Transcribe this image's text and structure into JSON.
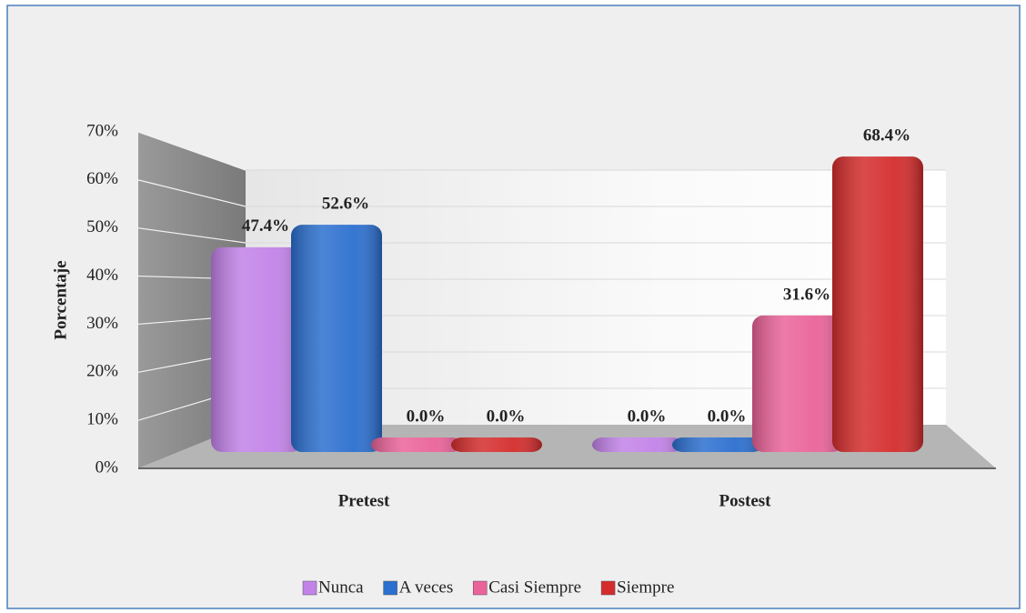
{
  "chart_data": {
    "type": "bar",
    "y_label": "Porcentaje",
    "categories": [
      "Pretest",
      "Postest"
    ],
    "series": [
      {
        "name": "Nunca",
        "color": "#c282e8",
        "values": [
          47.4,
          0
        ],
        "value_labels": [
          "47.4%",
          "0.0%"
        ]
      },
      {
        "name": "A veces",
        "color": "#2b6fcf",
        "values": [
          52.6,
          0
        ],
        "value_labels": [
          "52.6%",
          "0.0%"
        ]
      },
      {
        "name": "Casi Siempre",
        "color": "#ea6399",
        "values": [
          0,
          31.6
        ],
        "value_labels": [
          "0.0%",
          "31.6%"
        ]
      },
      {
        "name": "Siempre",
        "color": "#d42c2c",
        "values": [
          0,
          68.4
        ],
        "value_labels": [
          "0.0%",
          "68.4%"
        ]
      }
    ],
    "ylim": [
      0,
      70
    ],
    "yticks": [
      {
        "value": 0,
        "label": "0%"
      },
      {
        "value": 10,
        "label": "10%"
      },
      {
        "value": 20,
        "label": "20%"
      },
      {
        "value": 30,
        "label": "30%"
      },
      {
        "value": 40,
        "label": "40%"
      },
      {
        "value": 50,
        "label": "50%"
      },
      {
        "value": 60,
        "label": "60%"
      },
      {
        "value": 70,
        "label": "70%"
      }
    ],
    "grid": true,
    "legend": "bottom"
  }
}
